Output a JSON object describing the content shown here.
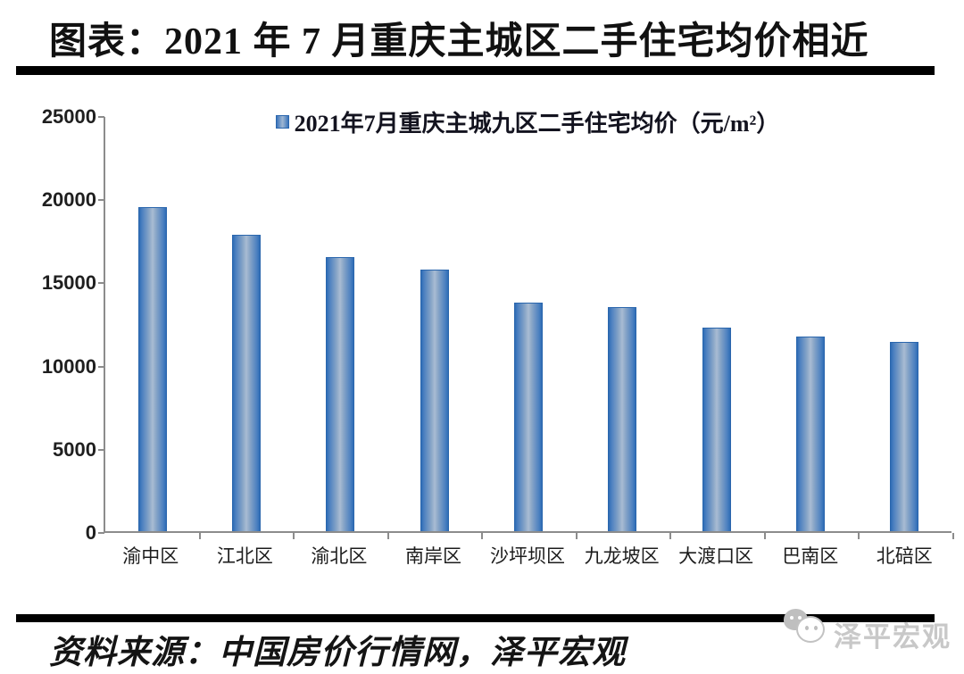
{
  "header": {
    "title": "图表：2021 年 7 月重庆主城区二手住宅均价相近"
  },
  "chart_data": {
    "type": "bar",
    "title": "2021年7月重庆主城九区二手住宅均价（元/m²）",
    "legend": [
      {
        "label": "2021年7月重庆主城九区二手住宅均价（元/m²）",
        "marker_color": "#6b96c9"
      }
    ],
    "legend_position": "top-center",
    "categories": [
      "渝中区",
      "江北区",
      "渝北区",
      "南岸区",
      "沙坪坝区",
      "九龙坡区",
      "大渡口区",
      "巴南区",
      "北碚区"
    ],
    "values": [
      19500,
      17800,
      16450,
      15700,
      13750,
      13450,
      12250,
      11700,
      11400
    ],
    "unit": "元/m²",
    "xlabel": "",
    "ylabel": "",
    "ylim": [
      0,
      25000
    ],
    "yticks": [
      25000,
      20000,
      15000,
      10000,
      5000,
      0
    ],
    "grid": false,
    "bar_edge_color": "#2e6cb5",
    "bar_center_color": "#a9bcd3",
    "bar_border_color": "#2a66ad",
    "axis_color": "#8c8c8c"
  },
  "footer": {
    "source": "资料来源：中国房价行情网，泽平宏观",
    "watermark_text": "泽平宏观"
  }
}
